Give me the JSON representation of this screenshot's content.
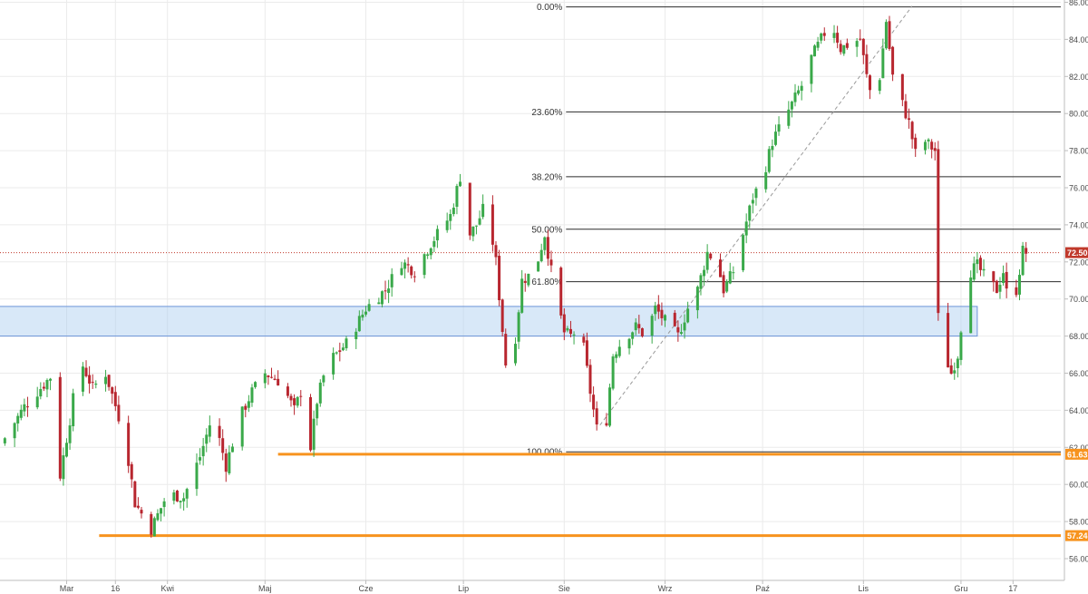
{
  "chart_data": {
    "type": "candlestick",
    "ylim": [
      55,
      87
    ],
    "y_ticks": [
      "56.00",
      "58.00",
      "60.00",
      "62.00",
      "64.00",
      "66.00",
      "68.00",
      "70.00",
      "72.00",
      "74.00",
      "76.00",
      "78.00",
      "80.00",
      "82.00",
      "84.00",
      "86.00"
    ],
    "x_ticks": [
      {
        "label": "Mar",
        "day": 58
      },
      {
        "label": "16",
        "day": 73
      },
      {
        "label": "Kwi",
        "day": 89
      },
      {
        "label": "Maj",
        "day": 119
      },
      {
        "label": "Cze",
        "day": 150
      },
      {
        "label": "Lip",
        "day": 180
      },
      {
        "label": "Sie",
        "day": 211
      },
      {
        "label": "Wrz",
        "day": 242
      },
      {
        "label": "Paź",
        "day": 272
      },
      {
        "label": "Lis",
        "day": 303
      },
      {
        "label": "Gru",
        "day": 333
      },
      {
        "label": "17",
        "day": 349
      }
    ],
    "fibonacci": {
      "high": 85.75,
      "low": 61.76,
      "levels": [
        {
          "label": "0.00%",
          "value": 85.75
        },
        {
          "label": "23.60%",
          "value": 80.09
        },
        {
          "label": "38.20%",
          "value": 76.59
        },
        {
          "label": "50.00%",
          "value": 73.76
        },
        {
          "label": "61.80%",
          "value": 70.93
        },
        {
          "label": "100.00%",
          "value": 61.76
        }
      ]
    },
    "zone": {
      "from": 68.0,
      "to": 69.6,
      "start_day": 37,
      "end_day": 338
    },
    "support_lines": [
      {
        "value": 61.63,
        "label": "61.63",
        "start_day": 123
      },
      {
        "value": 57.24,
        "label": "57.24",
        "start_day": 68
      }
    ],
    "last_price": {
      "value": 72.5,
      "label": "72.50"
    },
    "trend_line": {
      "from_day": 222,
      "from_value": 63.2,
      "to_day": 318,
      "to_value": 85.8
    },
    "anchors": [
      {
        "day": 39,
        "close": 62.5
      },
      {
        "day": 45,
        "close": 64.2
      },
      {
        "day": 53,
        "close": 65.8
      },
      {
        "day": 56,
        "close": 60.5
      },
      {
        "day": 59,
        "close": 63.5
      },
      {
        "day": 62,
        "close": 66.8
      },
      {
        "day": 66,
        "close": 65.2
      },
      {
        "day": 70,
        "close": 66.0
      },
      {
        "day": 76,
        "close": 62.5
      },
      {
        "day": 79,
        "close": 59.0
      },
      {
        "day": 84,
        "close": 57.6
      },
      {
        "day": 89,
        "close": 59.5
      },
      {
        "day": 94,
        "close": 59.3
      },
      {
        "day": 99,
        "close": 61.5
      },
      {
        "day": 103,
        "close": 63.8
      },
      {
        "day": 107,
        "close": 61.0
      },
      {
        "day": 111,
        "close": 63.5
      },
      {
        "day": 115,
        "close": 65.0
      },
      {
        "day": 119,
        "close": 66.0
      },
      {
        "day": 124,
        "close": 65.5
      },
      {
        "day": 128,
        "close": 64.0
      },
      {
        "day": 131,
        "close": 65.5
      },
      {
        "day": 133,
        "close": 62.0
      },
      {
        "day": 135,
        "close": 64.5
      },
      {
        "day": 138,
        "close": 66.5
      },
      {
        "day": 144,
        "close": 67.6
      },
      {
        "day": 150,
        "close": 69.5
      },
      {
        "day": 156,
        "close": 70.5
      },
      {
        "day": 161,
        "close": 72.0
      },
      {
        "day": 165,
        "close": 71.5
      },
      {
        "day": 170,
        "close": 73.0
      },
      {
        "day": 176,
        "close": 74.5
      },
      {
        "day": 179,
        "close": 76.6
      },
      {
        "day": 182,
        "close": 73.5
      },
      {
        "day": 184,
        "close": 74.0
      },
      {
        "day": 187,
        "close": 75.2
      },
      {
        "day": 190,
        "close": 72.0
      },
      {
        "day": 193,
        "close": 66.5
      },
      {
        "day": 195,
        "close": 66.4
      },
      {
        "day": 198,
        "close": 71.0
      },
      {
        "day": 202,
        "close": 71.5
      },
      {
        "day": 205,
        "close": 73.5
      },
      {
        "day": 208,
        "close": 70.5
      },
      {
        "day": 211,
        "close": 68.2
      },
      {
        "day": 213,
        "close": 68.0
      },
      {
        "day": 216,
        "close": 68.5
      },
      {
        "day": 219,
        "close": 65.0
      },
      {
        "day": 222,
        "close": 62.0
      },
      {
        "day": 223,
        "close": 61.8
      },
      {
        "day": 224,
        "close": 63.5
      },
      {
        "day": 226,
        "close": 67.0
      },
      {
        "day": 229,
        "close": 67.8
      },
      {
        "day": 233,
        "close": 68.5
      },
      {
        "day": 236,
        "close": 68.0
      },
      {
        "day": 239,
        "close": 69.5
      },
      {
        "day": 242,
        "close": 68.8
      },
      {
        "day": 246,
        "close": 68.0
      },
      {
        "day": 249,
        "close": 69.5
      },
      {
        "day": 252,
        "close": 70.5
      },
      {
        "day": 255,
        "close": 72.5
      },
      {
        "day": 258,
        "close": 72.0
      },
      {
        "day": 260,
        "close": 70.5
      },
      {
        "day": 263,
        "close": 71.5
      },
      {
        "day": 266,
        "close": 73.5
      },
      {
        "day": 269,
        "close": 75.5
      },
      {
        "day": 272,
        "close": 76.5
      },
      {
        "day": 275,
        "close": 78.5
      },
      {
        "day": 278,
        "close": 79.5
      },
      {
        "day": 281,
        "close": 80.5
      },
      {
        "day": 284,
        "close": 81.5
      },
      {
        "day": 287,
        "close": 83.0
      },
      {
        "day": 290,
        "close": 84.0
      },
      {
        "day": 293,
        "close": 85.0
      },
      {
        "day": 296,
        "close": 83.5
      },
      {
        "day": 299,
        "close": 83.8
      },
      {
        "day": 302,
        "close": 84.0
      },
      {
        "day": 304,
        "close": 82.0
      },
      {
        "day": 306,
        "close": 80.5
      },
      {
        "day": 308,
        "close": 82.0
      },
      {
        "day": 310,
        "close": 85.0
      },
      {
        "day": 312,
        "close": 82.0
      },
      {
        "day": 315,
        "close": 80.5
      },
      {
        "day": 317,
        "close": 79.5
      },
      {
        "day": 320,
        "close": 77.0
      },
      {
        "day": 322,
        "close": 78.5
      },
      {
        "day": 325,
        "close": 78.0
      },
      {
        "day": 326,
        "close": 69.0
      },
      {
        "day": 328,
        "close": 67.0
      },
      {
        "day": 330,
        "close": 66.0
      },
      {
        "day": 332,
        "close": 67.0
      },
      {
        "day": 334,
        "close": 70.0
      },
      {
        "day": 336,
        "close": 71.5
      },
      {
        "day": 338,
        "close": 71.8
      },
      {
        "day": 341,
        "close": 71.0
      },
      {
        "day": 344,
        "close": 70.5
      },
      {
        "day": 346,
        "close": 71.5
      },
      {
        "day": 348,
        "close": 69.2
      },
      {
        "day": 350,
        "close": 70.5
      },
      {
        "day": 352,
        "close": 72.6
      },
      {
        "day": 353,
        "close": 72.5
      }
    ]
  }
}
